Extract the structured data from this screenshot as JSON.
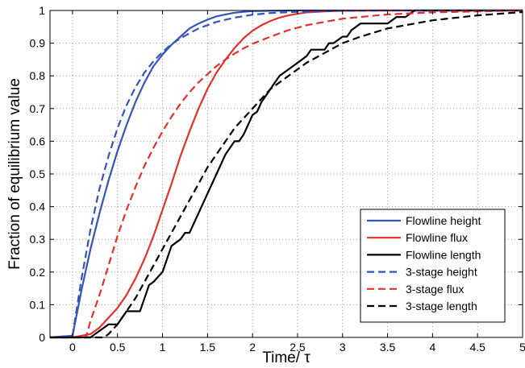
{
  "chart_data": {
    "type": "line",
    "title": "",
    "xlabel": "Time/ τ",
    "ylabel": "Fraction of equilibrium value",
    "xlim": [
      -0.25,
      5
    ],
    "ylim": [
      0,
      1
    ],
    "xticks": [
      0,
      0.5,
      1,
      1.5,
      2,
      2.5,
      3,
      3.5,
      4,
      4.5,
      5
    ],
    "xtick_labels": [
      "0",
      "0.5",
      "1",
      "1.5",
      "2",
      "2.5",
      "3",
      "3.5",
      "4",
      "4.5",
      "5"
    ],
    "yticks": [
      0,
      0.1,
      0.2,
      0.3,
      0.4,
      0.5,
      0.6,
      0.7,
      0.8,
      0.9,
      1
    ],
    "ytick_labels": [
      "0",
      "0.1",
      "0.2",
      "0.3",
      "0.4",
      "0.5",
      "0.6",
      "0.7",
      "0.8",
      "0.9",
      "1"
    ],
    "grid": true,
    "legend_position": "bottom-right",
    "series": [
      {
        "name": "Flowline height",
        "color": "#3355bb",
        "dash": "solid",
        "x": [
          -0.25,
          0,
          0.1,
          0.2,
          0.3,
          0.4,
          0.5,
          0.6,
          0.7,
          0.8,
          0.9,
          1.0,
          1.1,
          1.2,
          1.3,
          1.4,
          1.5,
          1.6,
          1.7,
          1.8,
          1.9,
          2.0,
          2.2,
          2.5,
          3.0,
          3.5,
          4.0,
          4.5,
          5.0
        ],
        "y": [
          0,
          0.005,
          0.145,
          0.27,
          0.38,
          0.48,
          0.57,
          0.65,
          0.72,
          0.78,
          0.83,
          0.865,
          0.895,
          0.92,
          0.945,
          0.96,
          0.972,
          0.982,
          0.988,
          0.993,
          0.996,
          0.998,
          0.999,
          1,
          1,
          1,
          1,
          1,
          1
        ]
      },
      {
        "name": "Flowline flux",
        "color": "#e4302b",
        "dash": "solid",
        "x": [
          -0.25,
          0,
          0.2,
          0.3,
          0.4,
          0.5,
          0.6,
          0.7,
          0.8,
          0.9,
          1.0,
          1.1,
          1.2,
          1.3,
          1.4,
          1.5,
          1.6,
          1.7,
          1.8,
          1.9,
          2.0,
          2.1,
          2.2,
          2.3,
          2.4,
          2.5,
          2.6,
          2.8,
          3.0,
          3.3,
          3.5,
          4.0,
          5.0
        ],
        "y": [
          0,
          0,
          0.01,
          0.03,
          0.06,
          0.09,
          0.13,
          0.18,
          0.24,
          0.31,
          0.39,
          0.47,
          0.555,
          0.63,
          0.7,
          0.76,
          0.81,
          0.85,
          0.885,
          0.915,
          0.938,
          0.955,
          0.968,
          0.978,
          0.985,
          0.99,
          0.994,
          0.997,
          0.999,
          1,
          1,
          1,
          1
        ]
      },
      {
        "name": "Flowline length",
        "color": "#000000",
        "dash": "solid",
        "x": [
          -0.25,
          0.2,
          0.25,
          0.3,
          0.4,
          0.5,
          0.55,
          0.6,
          0.7,
          0.75,
          0.8,
          0.85,
          0.9,
          1.0,
          1.05,
          1.1,
          1.2,
          1.25,
          1.3,
          1.4,
          1.5,
          1.6,
          1.7,
          1.8,
          1.85,
          1.9,
          2.0,
          2.05,
          2.1,
          2.2,
          2.25,
          2.3,
          2.4,
          2.5,
          2.6,
          2.65,
          2.7,
          2.8,
          2.85,
          2.9,
          3.0,
          3.05,
          3.1,
          3.2,
          3.3,
          3.35,
          3.4,
          3.5,
          3.6,
          3.7,
          3.8,
          3.85,
          4.0,
          4.5,
          5.0
        ],
        "y": [
          0,
          0,
          0.01,
          0.02,
          0.04,
          0.04,
          0.06,
          0.08,
          0.08,
          0.08,
          0.12,
          0.16,
          0.17,
          0.2,
          0.24,
          0.28,
          0.3,
          0.32,
          0.32,
          0.38,
          0.44,
          0.5,
          0.56,
          0.6,
          0.6,
          0.62,
          0.68,
          0.69,
          0.72,
          0.76,
          0.78,
          0.8,
          0.82,
          0.84,
          0.86,
          0.88,
          0.88,
          0.88,
          0.9,
          0.9,
          0.92,
          0.92,
          0.94,
          0.96,
          0.96,
          0.96,
          0.96,
          0.96,
          0.98,
          0.98,
          1,
          1,
          1,
          1,
          1
        ]
      },
      {
        "name": "3-stage height",
        "color": "#3355bb",
        "dash": "dashed",
        "x": [
          -0.25,
          0,
          0.1,
          0.2,
          0.3,
          0.4,
          0.5,
          0.6,
          0.7,
          0.8,
          0.9,
          1.0,
          1.1,
          1.2,
          1.4,
          1.6,
          1.8,
          2.0,
          2.2,
          2.5,
          3.0,
          3.5,
          4.0,
          5.0
        ],
        "y": [
          0,
          0.005,
          0.18,
          0.33,
          0.455,
          0.555,
          0.64,
          0.71,
          0.765,
          0.81,
          0.845,
          0.873,
          0.897,
          0.915,
          0.945,
          0.965,
          0.978,
          0.987,
          0.992,
          0.996,
          0.999,
          1,
          1,
          1
        ]
      },
      {
        "name": "3-stage flux",
        "color": "#e4302b",
        "dash": "dashed",
        "x": [
          -0.25,
          0.15,
          0.2,
          0.3,
          0.4,
          0.5,
          0.6,
          0.7,
          0.8,
          0.9,
          1.0,
          1.1,
          1.2,
          1.3,
          1.4,
          1.5,
          1.6,
          1.7,
          1.8,
          1.9,
          2.0,
          2.2,
          2.4,
          2.6,
          2.8,
          3.0,
          3.5,
          4.0,
          4.5,
          5.0
        ],
        "y": [
          0,
          0,
          0.05,
          0.13,
          0.22,
          0.31,
          0.39,
          0.46,
          0.525,
          0.58,
          0.63,
          0.675,
          0.715,
          0.75,
          0.78,
          0.805,
          0.83,
          0.85,
          0.868,
          0.884,
          0.898,
          0.92,
          0.94,
          0.955,
          0.965,
          0.975,
          0.988,
          0.994,
          0.997,
          1
        ]
      },
      {
        "name": "3-stage length",
        "color": "#000000",
        "dash": "dashed",
        "x": [
          -0.25,
          0.35,
          0.4,
          0.5,
          0.6,
          0.7,
          0.8,
          0.9,
          1.0,
          1.1,
          1.2,
          1.3,
          1.4,
          1.5,
          1.6,
          1.7,
          1.8,
          1.9,
          2.0,
          2.2,
          2.4,
          2.6,
          2.8,
          3.0,
          3.2,
          3.5,
          4.0,
          4.5,
          5.0
        ],
        "y": [
          0,
          0,
          0.01,
          0.04,
          0.08,
          0.12,
          0.17,
          0.22,
          0.27,
          0.32,
          0.37,
          0.42,
          0.47,
          0.52,
          0.56,
          0.6,
          0.64,
          0.67,
          0.7,
          0.76,
          0.8,
          0.84,
          0.87,
          0.9,
          0.92,
          0.945,
          0.97,
          0.985,
          0.995
        ]
      }
    ]
  }
}
